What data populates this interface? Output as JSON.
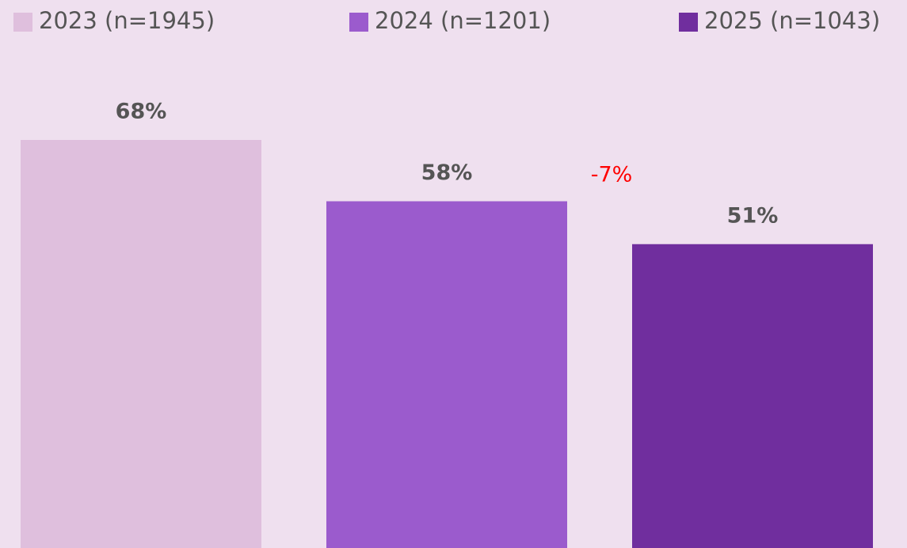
{
  "chart_data": {
    "type": "bar",
    "series": [
      {
        "name": "2023 (n=1945)",
        "color": "#dfbfdd",
        "values": [
          68
        ],
        "value_labels": [
          "68%"
        ]
      },
      {
        "name": "2024 (n=1201)",
        "color": "#9b5bcd",
        "values": [
          58
        ],
        "value_labels": [
          "58%"
        ]
      },
      {
        "name": "2025 (n=1043)",
        "color": "#702e9e",
        "values": [
          51
        ],
        "value_labels": [
          "51%"
        ]
      }
    ],
    "annotations": [
      {
        "text": "-7%",
        "color": "#ff0000"
      }
    ]
  }
}
